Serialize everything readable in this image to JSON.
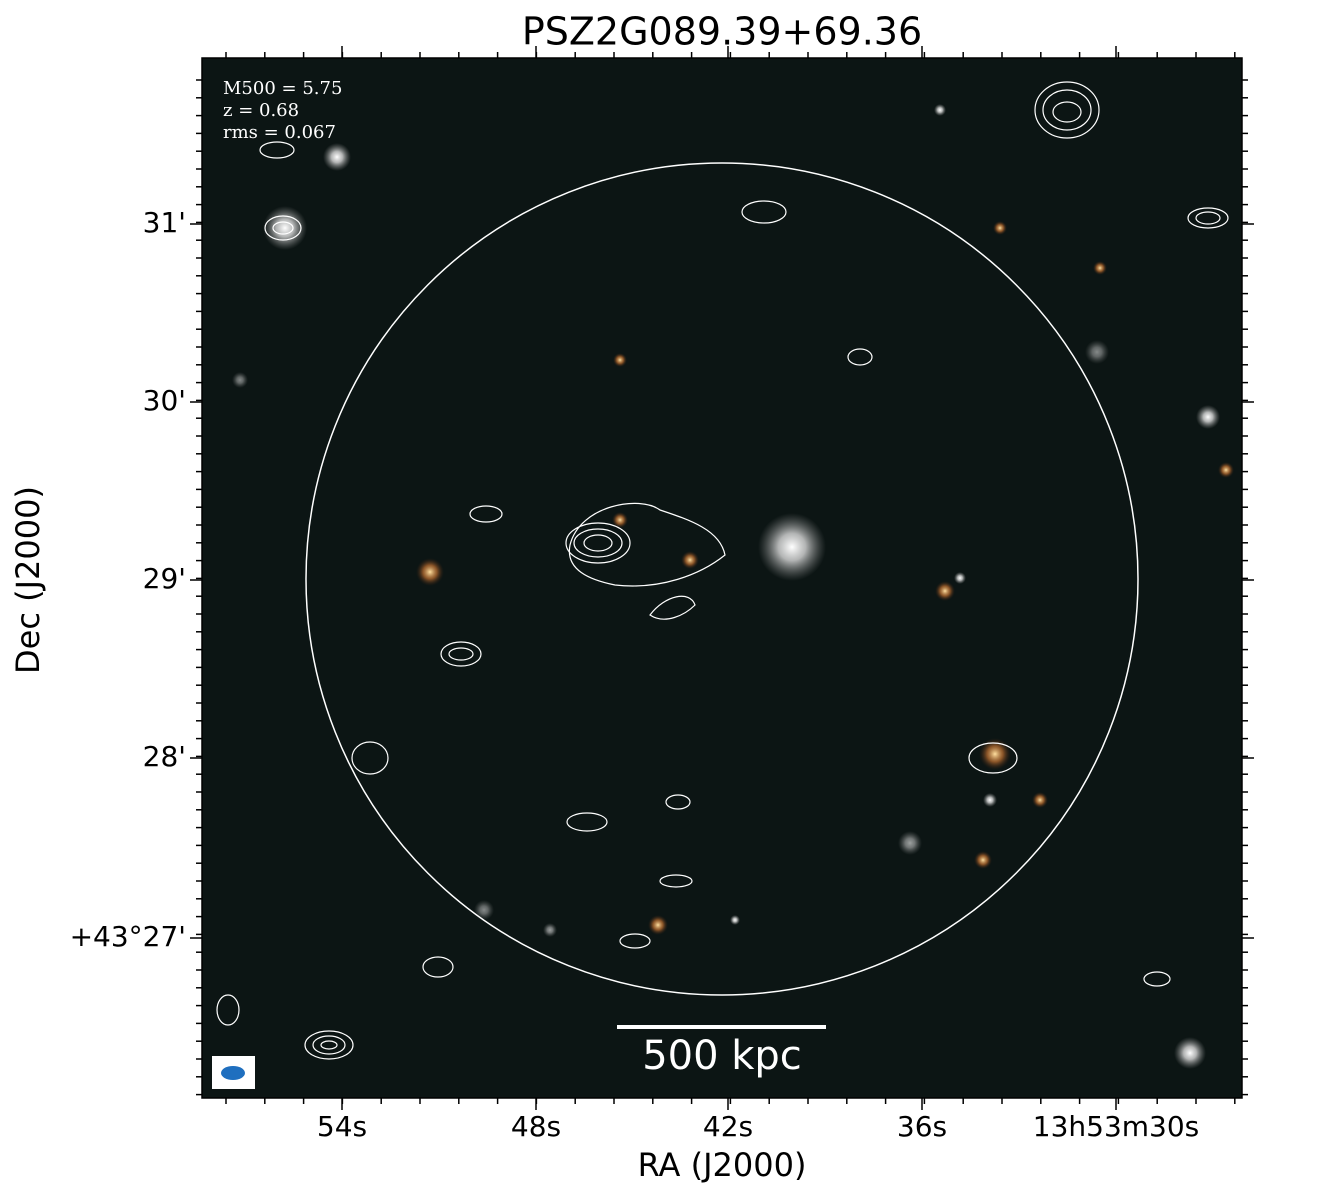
{
  "title": "PSZ2G089.39+69.36",
  "annotations": [
    "M500 = 5.75",
    "z = 0.68",
    "rms = 0.067"
  ],
  "x_axis": {
    "label": "RA (J2000)",
    "ticks": [
      "54s",
      "48s",
      "42s",
      "36s",
      "13h53m30s"
    ]
  },
  "y_axis": {
    "label": "Dec (J2000)",
    "ticks": [
      "31'",
      "30'",
      "29'",
      "28'",
      "+43°27'"
    ]
  },
  "scale_bar": "500 kpc"
}
